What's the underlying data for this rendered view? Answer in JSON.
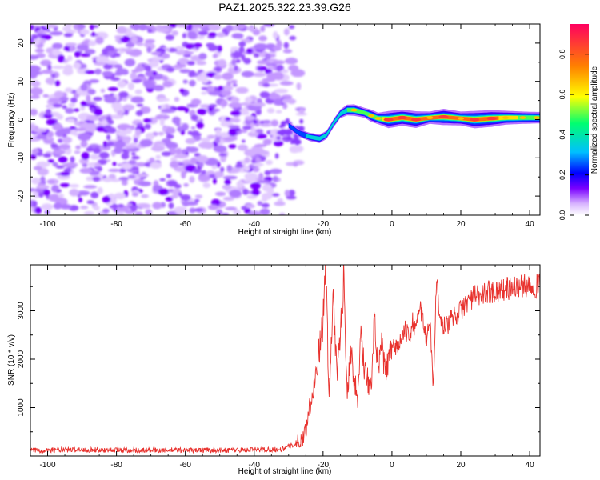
{
  "figure": {
    "title": "PAZ1.2025.322.23.39.G26"
  },
  "colors": {
    "snr_line": "#e8322e",
    "axis": "#000000",
    "background": "#ffffff",
    "colormap": [
      "#ffffff",
      "#7a00ff",
      "#0000ff",
      "#00c0ff",
      "#00ff70",
      "#ffff00",
      "#ff8000",
      "#ff0060"
    ]
  },
  "chart_data": [
    {
      "type": "heatmap",
      "name": "spectrogram",
      "title": "",
      "xlabel": "Height of straight line (km)",
      "ylabel": "Frequency (Hz)",
      "xlim": [
        -105,
        43
      ],
      "ylim": [
        -25,
        25
      ],
      "xticks": [
        -100,
        -80,
        -60,
        -40,
        -20,
        0,
        20,
        40
      ],
      "yticks": [
        -20,
        -10,
        0,
        10,
        20
      ],
      "noise_region": {
        "x_range": [
          -105,
          -28
        ],
        "freq_range": [
          -25,
          25
        ],
        "amplitude_range": [
          0.0,
          0.15
        ]
      },
      "signal_track": [
        {
          "x": -30,
          "freq": -1.5,
          "amp": 0.25
        },
        {
          "x": -27,
          "freq": -3.5,
          "amp": 0.3
        },
        {
          "x": -24,
          "freq": -4.5,
          "amp": 0.35
        },
        {
          "x": -21,
          "freq": -5.0,
          "amp": 0.38
        },
        {
          "x": -19,
          "freq": -4.0,
          "amp": 0.35
        },
        {
          "x": -17,
          "freq": -1.0,
          "amp": 0.35
        },
        {
          "x": -15,
          "freq": 1.5,
          "amp": 0.38
        },
        {
          "x": -13,
          "freq": 2.5,
          "amp": 0.5
        },
        {
          "x": -11,
          "freq": 2.5,
          "amp": 0.55
        },
        {
          "x": -8,
          "freq": 1.8,
          "amp": 0.45
        },
        {
          "x": -6,
          "freq": 1.0,
          "amp": 0.6
        },
        {
          "x": -4,
          "freq": 0.3,
          "amp": 0.55
        },
        {
          "x": -1,
          "freq": 0.0,
          "amp": 0.9
        },
        {
          "x": 3,
          "freq": 0.5,
          "amp": 0.85
        },
        {
          "x": 7,
          "freq": 0.0,
          "amp": 0.88
        },
        {
          "x": 11,
          "freq": 0.5,
          "amp": 0.6
        },
        {
          "x": 15,
          "freq": 0.7,
          "amp": 0.85
        },
        {
          "x": 20,
          "freq": 0.3,
          "amp": 0.7
        },
        {
          "x": 24,
          "freq": 0.0,
          "amp": 0.92
        },
        {
          "x": 29,
          "freq": 0.3,
          "amp": 0.88
        },
        {
          "x": 33,
          "freq": 0.5,
          "amp": 0.7
        },
        {
          "x": 38,
          "freq": 0.5,
          "amp": 0.6
        },
        {
          "x": 42,
          "freq": 0.5,
          "amp": 0.55
        }
      ]
    },
    {
      "type": "colorbar",
      "name": "amplitude-colorbar",
      "label": "Normalized spectral amplitude",
      "range": [
        0.0,
        0.95
      ],
      "ticks": [
        "0.0",
        "0.2",
        "0.4",
        "0.6",
        "0.8"
      ]
    },
    {
      "type": "line",
      "name": "snr",
      "title": "",
      "xlabel": "Height of straight line (km)",
      "ylabel": "SNR (10 * v/v)",
      "xlim": [
        -105,
        43
      ],
      "ylim": [
        0,
        3950
      ],
      "xticks": [
        -100,
        -80,
        -60,
        -40,
        -20,
        0,
        20,
        40
      ],
      "yticks": [
        1000,
        2000,
        3000
      ],
      "series": [
        {
          "name": "SNR",
          "x": [
            -105,
            -90,
            -80,
            -70,
            -60,
            -50,
            -40,
            -32,
            -28,
            -26,
            -25,
            -24,
            -22,
            -20,
            -19.2,
            -18.3,
            -17,
            -16,
            -15,
            -14,
            -13,
            -12,
            -10,
            -9,
            -8,
            -6,
            -5,
            -4,
            -3,
            -2,
            0,
            2,
            4,
            5,
            6,
            7,
            8,
            10,
            11,
            12,
            13,
            14,
            16,
            18,
            20,
            22,
            24,
            26,
            28,
            30,
            33,
            36,
            38,
            40,
            42,
            43
          ],
          "values": [
            120,
            130,
            125,
            120,
            125,
            120,
            130,
            140,
            250,
            350,
            550,
            1000,
            1700,
            2800,
            3950,
            1100,
            3400,
            1600,
            2500,
            3700,
            1300,
            2200,
            1100,
            2600,
            1800,
            1350,
            2900,
            1600,
            2400,
            1700,
            2200,
            2300,
            2600,
            2400,
            2800,
            2500,
            3200,
            2400,
            2900,
            1400,
            3750,
            2700,
            2700,
            2900,
            3000,
            3200,
            3300,
            3300,
            3400,
            3400,
            3450,
            3500,
            3500,
            3550,
            3500,
            3700
          ]
        }
      ]
    }
  ]
}
